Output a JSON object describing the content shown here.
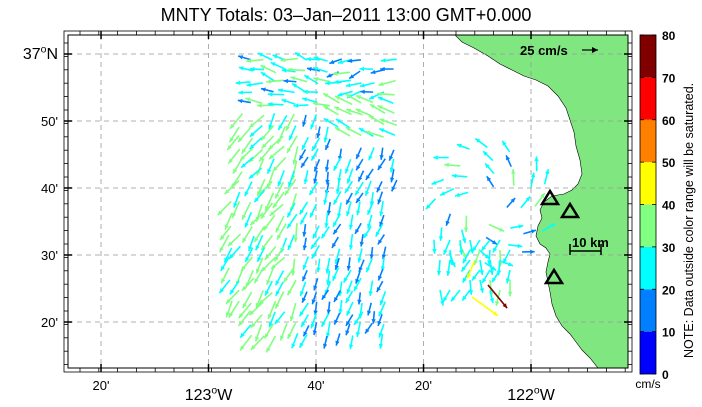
{
  "title": "MNTY Totals: 03–Jan–2011 13:00 GMT+0.000",
  "lat_labels": [
    {
      "text": "37",
      "deg": true,
      "suffix": "N",
      "lat": 37.0
    },
    {
      "text": "50'",
      "deg": false,
      "suffix": "",
      "lat": 36.8333
    },
    {
      "text": "40'",
      "deg": false,
      "suffix": "",
      "lat": 36.6667
    },
    {
      "text": "30'",
      "deg": false,
      "suffix": "",
      "lat": 36.5
    },
    {
      "text": "20'",
      "deg": false,
      "suffix": "",
      "lat": 36.3333
    }
  ],
  "lon_labels": [
    {
      "text": "20'",
      "deg": false,
      "suffix": "",
      "lon": -123.3333
    },
    {
      "text": "123",
      "deg": true,
      "suffix": "W",
      "lon": -123.0
    },
    {
      "text": "40'",
      "deg": false,
      "suffix": "",
      "lon": -122.6667
    },
    {
      "text": "20'",
      "deg": false,
      "suffix": "",
      "lon": -122.3333
    },
    {
      "text": "122",
      "deg": true,
      "suffix": "W",
      "lon": -122.0
    }
  ],
  "scale_arrow_label": "25 cm/s",
  "scale_bar_label": "10 km",
  "colorbar": {
    "ticks": [
      "0",
      "10",
      "20",
      "30",
      "40",
      "50",
      "60",
      "70",
      "80"
    ],
    "unit": "cm/s",
    "note": "NOTE: Data outside color range will be saturated.",
    "colors": [
      "#0000ff",
      "#0080ff",
      "#00ffff",
      "#80ff80",
      "#ffff00",
      "#ff8000",
      "#ff0000",
      "#800000"
    ]
  },
  "colors": {
    "land": "#80e680",
    "grid": "#999999"
  }
}
